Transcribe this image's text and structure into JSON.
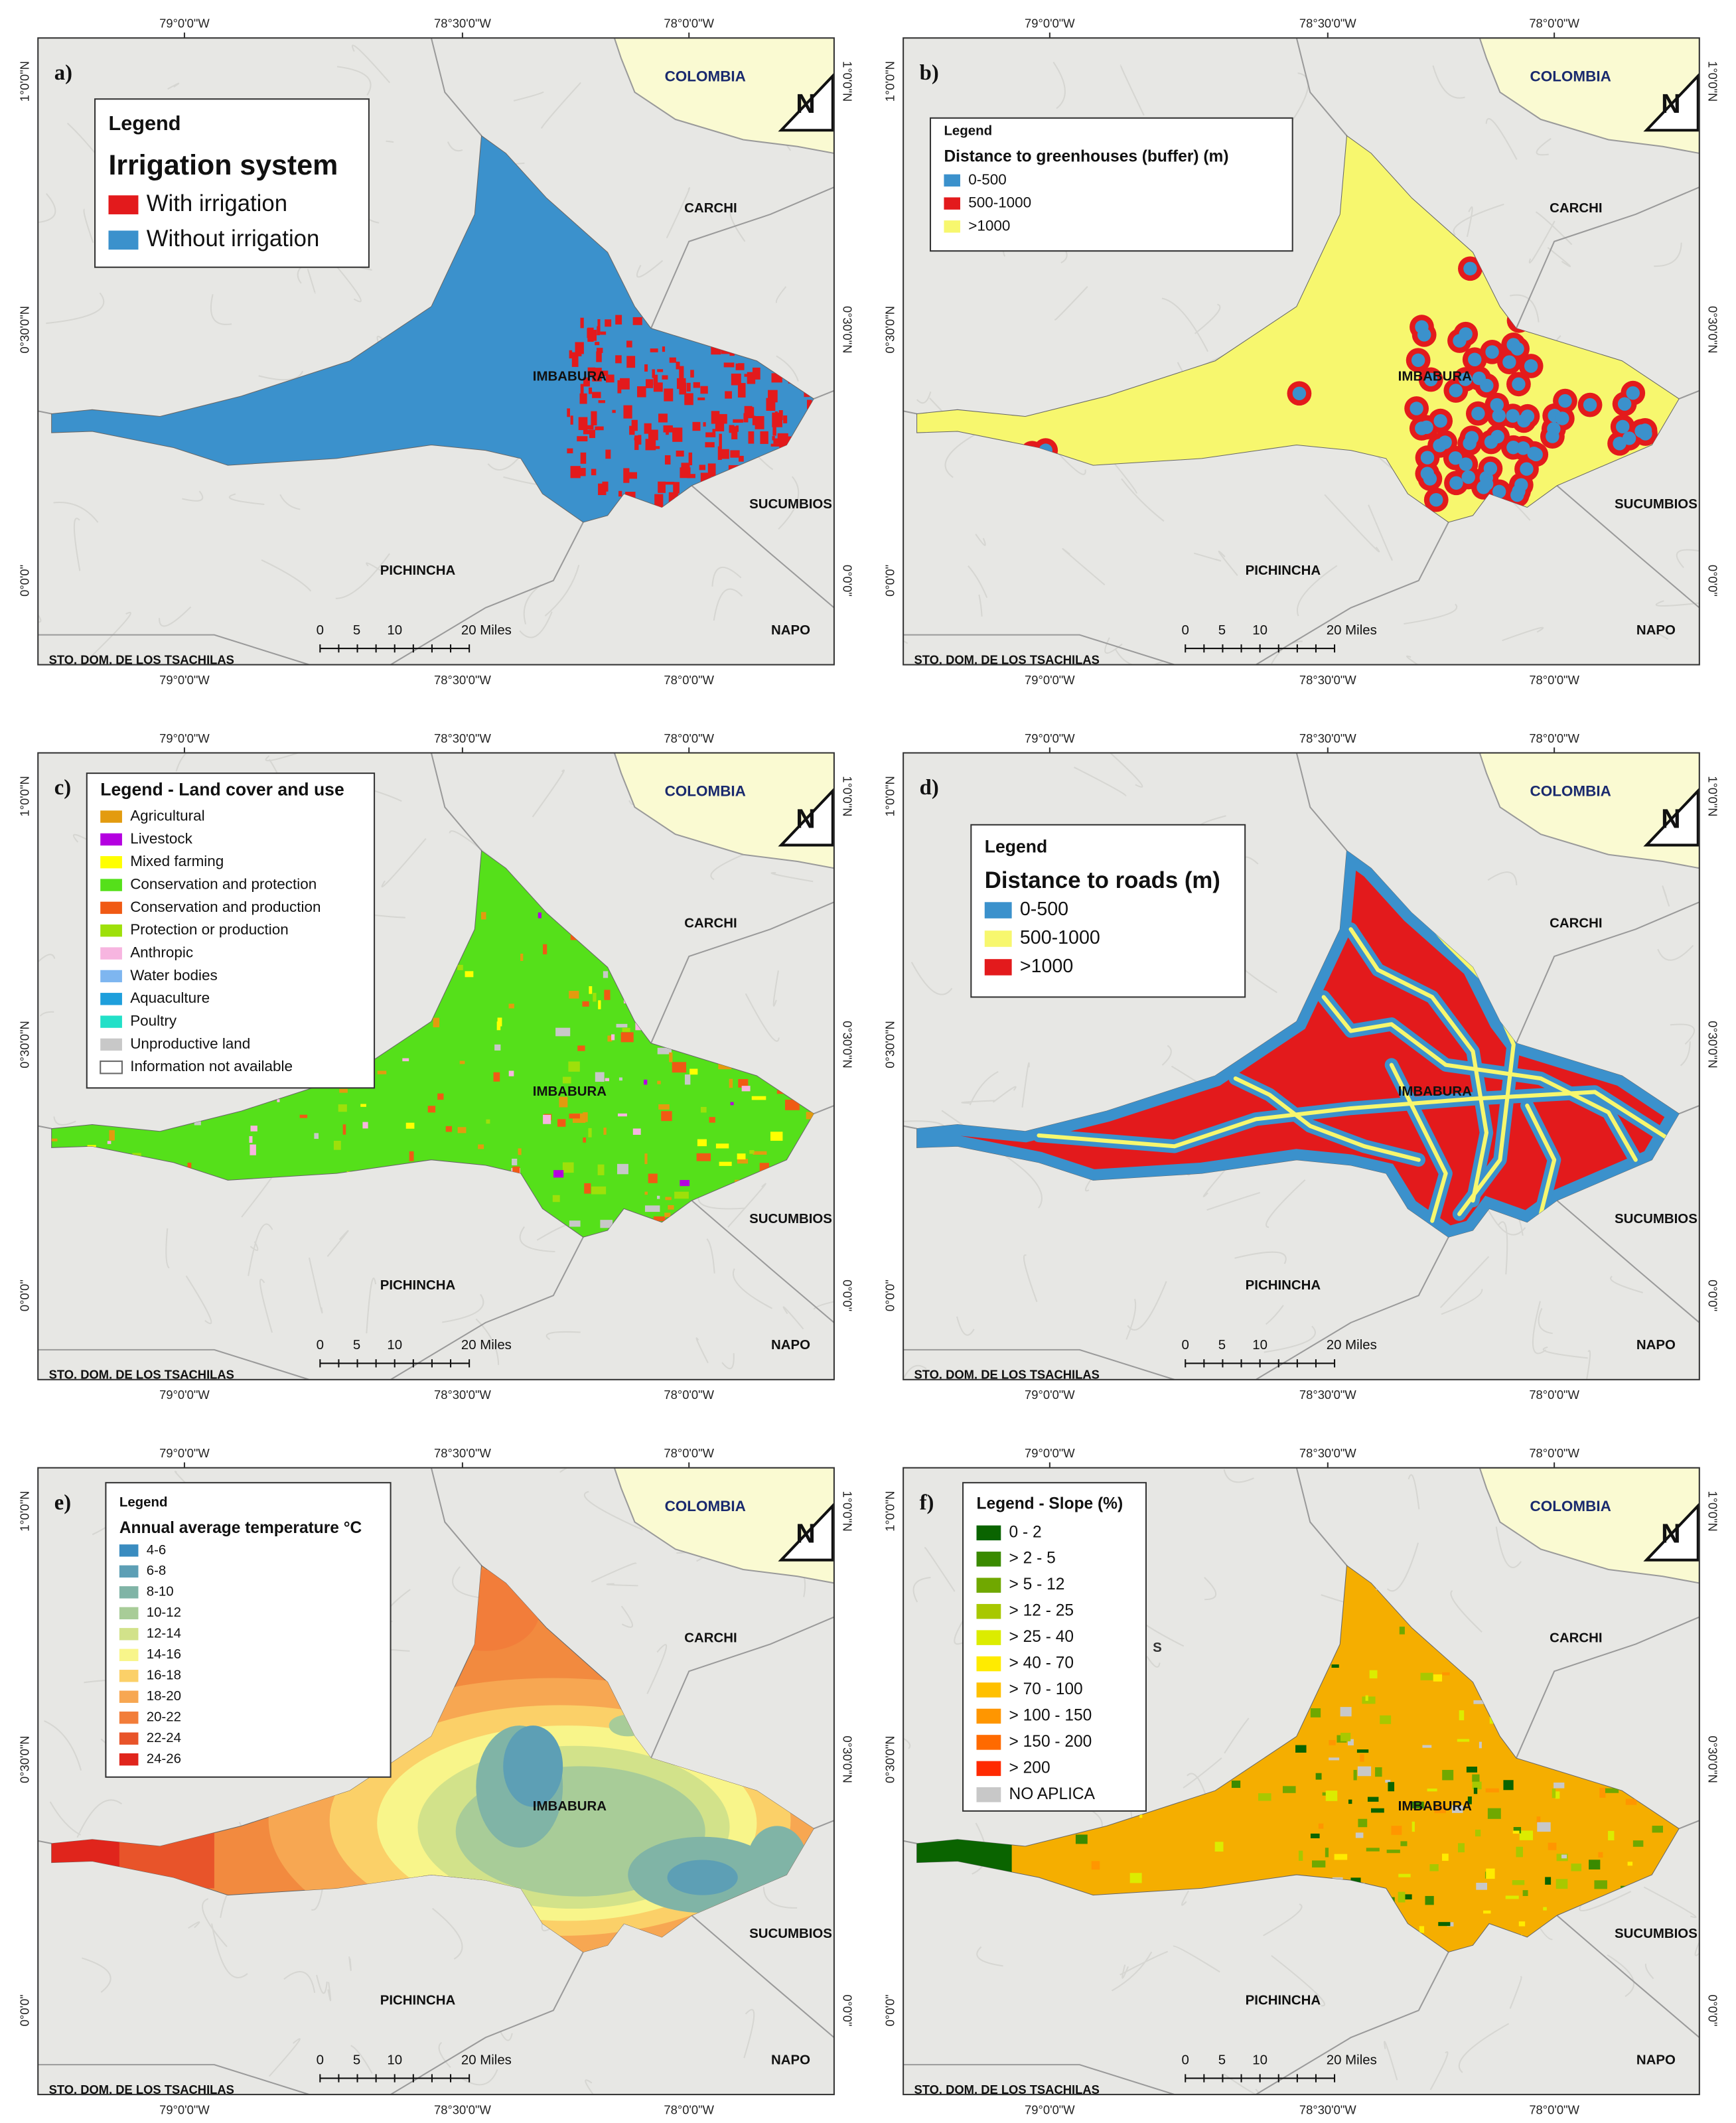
{
  "graticule": {
    "lon": [
      "79°0'0\"W",
      "78°30'0\"W",
      "78°0'0\"W"
    ],
    "lat": [
      "1°0'0\"N",
      "0°30'0\"N",
      "0°0'0\""
    ]
  },
  "places": [
    "COLOMBIA",
    "CARCHI",
    "IMBABURA",
    "SUCUMBIOS",
    "PICHINCHA",
    "NAPO",
    "STO. DOM. DE LOS TSACHILAS"
  ],
  "scale_bar": [
    "0",
    "5",
    "10",
    "20 Miles"
  ],
  "north": "N",
  "panels": [
    {
      "label": "a)",
      "legend": {
        "heading": "Legend",
        "title": "Irrigation system",
        "items": [
          {
            "label": "With irrigation",
            "color": "#e31a1c"
          },
          {
            "label": "Without irrigation",
            "color": "#3b91cc"
          }
        ]
      }
    },
    {
      "label": "b)",
      "legend": {
        "heading": "Legend",
        "title": "Distance to greenhouses (buffer) (m)",
        "items": [
          {
            "label": "0-500",
            "color": "#3b91cc"
          },
          {
            "label": "500-1000",
            "color": "#e31a1c"
          },
          {
            "label": ">1000",
            "color": "#f7f76e"
          }
        ]
      }
    },
    {
      "label": "c)",
      "legend": {
        "title": "Legend - Land cover and use",
        "items": [
          {
            "label": "Agricultural",
            "color": "#e39b0f"
          },
          {
            "label": "Livestock",
            "color": "#b400e0"
          },
          {
            "label": "Mixed farming",
            "color": "#ffff00"
          },
          {
            "label": "Conservation and protection",
            "color": "#55e01a"
          },
          {
            "label": "Conservation and production",
            "color": "#f05a14"
          },
          {
            "label": "Protection or production",
            "color": "#9ee00a"
          },
          {
            "label": "Anthropic",
            "color": "#f7b5e0"
          },
          {
            "label": "Water bodies",
            "color": "#7eb6f0"
          },
          {
            "label": "Aquaculture",
            "color": "#1e9fdc"
          },
          {
            "label": "Poultry",
            "color": "#22e0c8"
          },
          {
            "label": "Unproductive land",
            "color": "#c8c8c8"
          },
          {
            "label": "Information not available",
            "color": "#ffffff"
          }
        ]
      }
    },
    {
      "label": "d)",
      "legend": {
        "heading": "Legend",
        "title": "Distance to roads (m)",
        "items": [
          {
            "label": "0-500",
            "color": "#3b91cc"
          },
          {
            "label": "500-1000",
            "color": "#f7f76e"
          },
          {
            "label": ">1000",
            "color": "#e31a1c"
          }
        ]
      }
    },
    {
      "label": "e)",
      "legend": {
        "heading": "Legend",
        "title": "Annual average temperature °C",
        "items": [
          {
            "label": "4-6",
            "color": "#3a8cc0"
          },
          {
            "label": "6-8",
            "color": "#5d9fb5"
          },
          {
            "label": "8-10",
            "color": "#80b4a6"
          },
          {
            "label": "10-12",
            "color": "#a8cc98"
          },
          {
            "label": "12-14",
            "color": "#d2e28a"
          },
          {
            "label": "14-16",
            "color": "#f8f58a"
          },
          {
            "label": "16-18",
            "color": "#fbd068"
          },
          {
            "label": "18-20",
            "color": "#f7a752"
          },
          {
            "label": "20-22",
            "color": "#f27d3a"
          },
          {
            "label": "22-24",
            "color": "#e8542a"
          },
          {
            "label": "24-26",
            "color": "#e0251c"
          }
        ]
      }
    },
    {
      "label": "f)",
      "extra_labels": [
        "S"
      ],
      "legend": {
        "title": "Legend - Slope (%)",
        "items": [
          {
            "label": "0 - 2",
            "color": "#0a6400"
          },
          {
            "label": "> 2 - 5",
            "color": "#3a8a00"
          },
          {
            "label": "> 5 - 12",
            "color": "#70a800"
          },
          {
            "label": "> 12 - 25",
            "color": "#a8c800"
          },
          {
            "label": "> 25 - 40",
            "color": "#dcec00"
          },
          {
            "label": "> 40 - 70",
            "color": "#ffeb00"
          },
          {
            "label": "> 70 - 100",
            "color": "#ffc000"
          },
          {
            "label": "> 100 - 150",
            "color": "#ff9600"
          },
          {
            "label": "> 150 - 200",
            "color": "#ff6a00"
          },
          {
            "label": "> 200",
            "color": "#ff2a00"
          },
          {
            "label": "NO APLICA",
            "color": "#c8c8c8"
          }
        ]
      }
    }
  ]
}
